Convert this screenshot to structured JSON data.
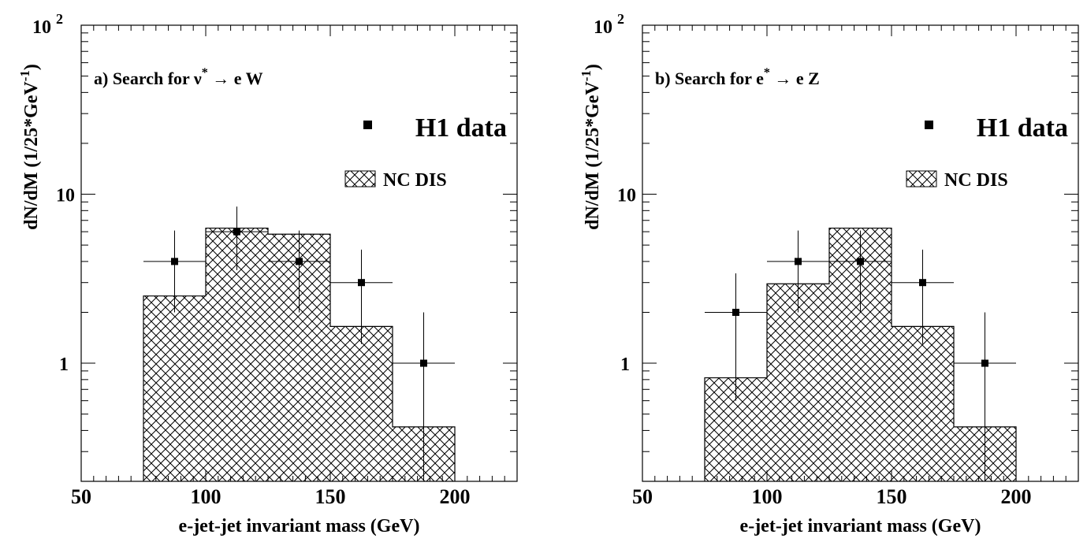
{
  "chart_data": [
    {
      "type": "histogram",
      "panel_label": "a)",
      "title_prefix": "a)  Search for ",
      "title_particle": "ν",
      "title_sup": "*",
      "title_arrow": " → ",
      "title_final": "e W",
      "xlabel": "e-jet-jet invariant mass (GeV)",
      "ylabel_main": "dN/dM (1/25*GeV",
      "ylabel_exp": "-1",
      "ylabel_close": ")",
      "log_y": true,
      "xlim": [
        50,
        225
      ],
      "ylim": [
        0.2,
        100
      ],
      "x_ticks": [
        "50",
        "100",
        "150",
        "200"
      ],
      "y_tick_1": "1",
      "y_tick_10": "10",
      "y_tick_100_base": "10",
      "y_tick_100_exp": "2",
      "legend": {
        "data_label": "H1 data",
        "mc_label": "NC DIS"
      },
      "mc_histogram": {
        "name": "NC DIS",
        "bin_edges": [
          75,
          100,
          125,
          150,
          175,
          200
        ],
        "values": [
          2.5,
          6.3,
          5.8,
          1.65,
          0.42
        ]
      },
      "data_points": {
        "name": "H1 data",
        "x": [
          87.5,
          112.5,
          137.5,
          162.5,
          187.5
        ],
        "y": [
          4,
          6,
          4,
          3,
          1
        ],
        "y_err_low": [
          2.0,
          2.45,
          2.0,
          1.7,
          1.0
        ],
        "y_err_high": [
          2.1,
          2.45,
          2.1,
          1.7,
          1.0
        ],
        "x_err": 12.5
      }
    },
    {
      "type": "histogram",
      "panel_label": "b)",
      "title_prefix": "b)  Search for ",
      "title_particle": "e",
      "title_sup": "*",
      "title_arrow": " → ",
      "title_final": "e Z",
      "xlabel": "e-jet-jet invariant mass (GeV)",
      "ylabel_main": "dN/dM (1/25*GeV",
      "ylabel_exp": "-1",
      "ylabel_close": ")",
      "log_y": true,
      "xlim": [
        50,
        225
      ],
      "ylim": [
        0.2,
        100
      ],
      "x_ticks": [
        "50",
        "100",
        "150",
        "200"
      ],
      "y_tick_1": "1",
      "y_tick_10": "10",
      "y_tick_100_base": "10",
      "y_tick_100_exp": "2",
      "legend": {
        "data_label": "H1 data",
        "mc_label": "NC DIS"
      },
      "mc_histogram": {
        "name": "NC DIS",
        "bin_edges": [
          75,
          100,
          125,
          150,
          175,
          200
        ],
        "values": [
          0.82,
          2.95,
          6.3,
          1.65,
          0.42
        ]
      },
      "data_points": {
        "name": "H1 data",
        "x": [
          87.5,
          112.5,
          137.5,
          162.5,
          187.5
        ],
        "y": [
          2,
          4,
          4,
          3,
          1
        ],
        "y_err_low": [
          1.4,
          2.0,
          2.0,
          1.7,
          1.0
        ],
        "y_err_high": [
          1.4,
          2.1,
          2.1,
          1.7,
          1.0
        ],
        "x_err": 12.5
      }
    }
  ]
}
